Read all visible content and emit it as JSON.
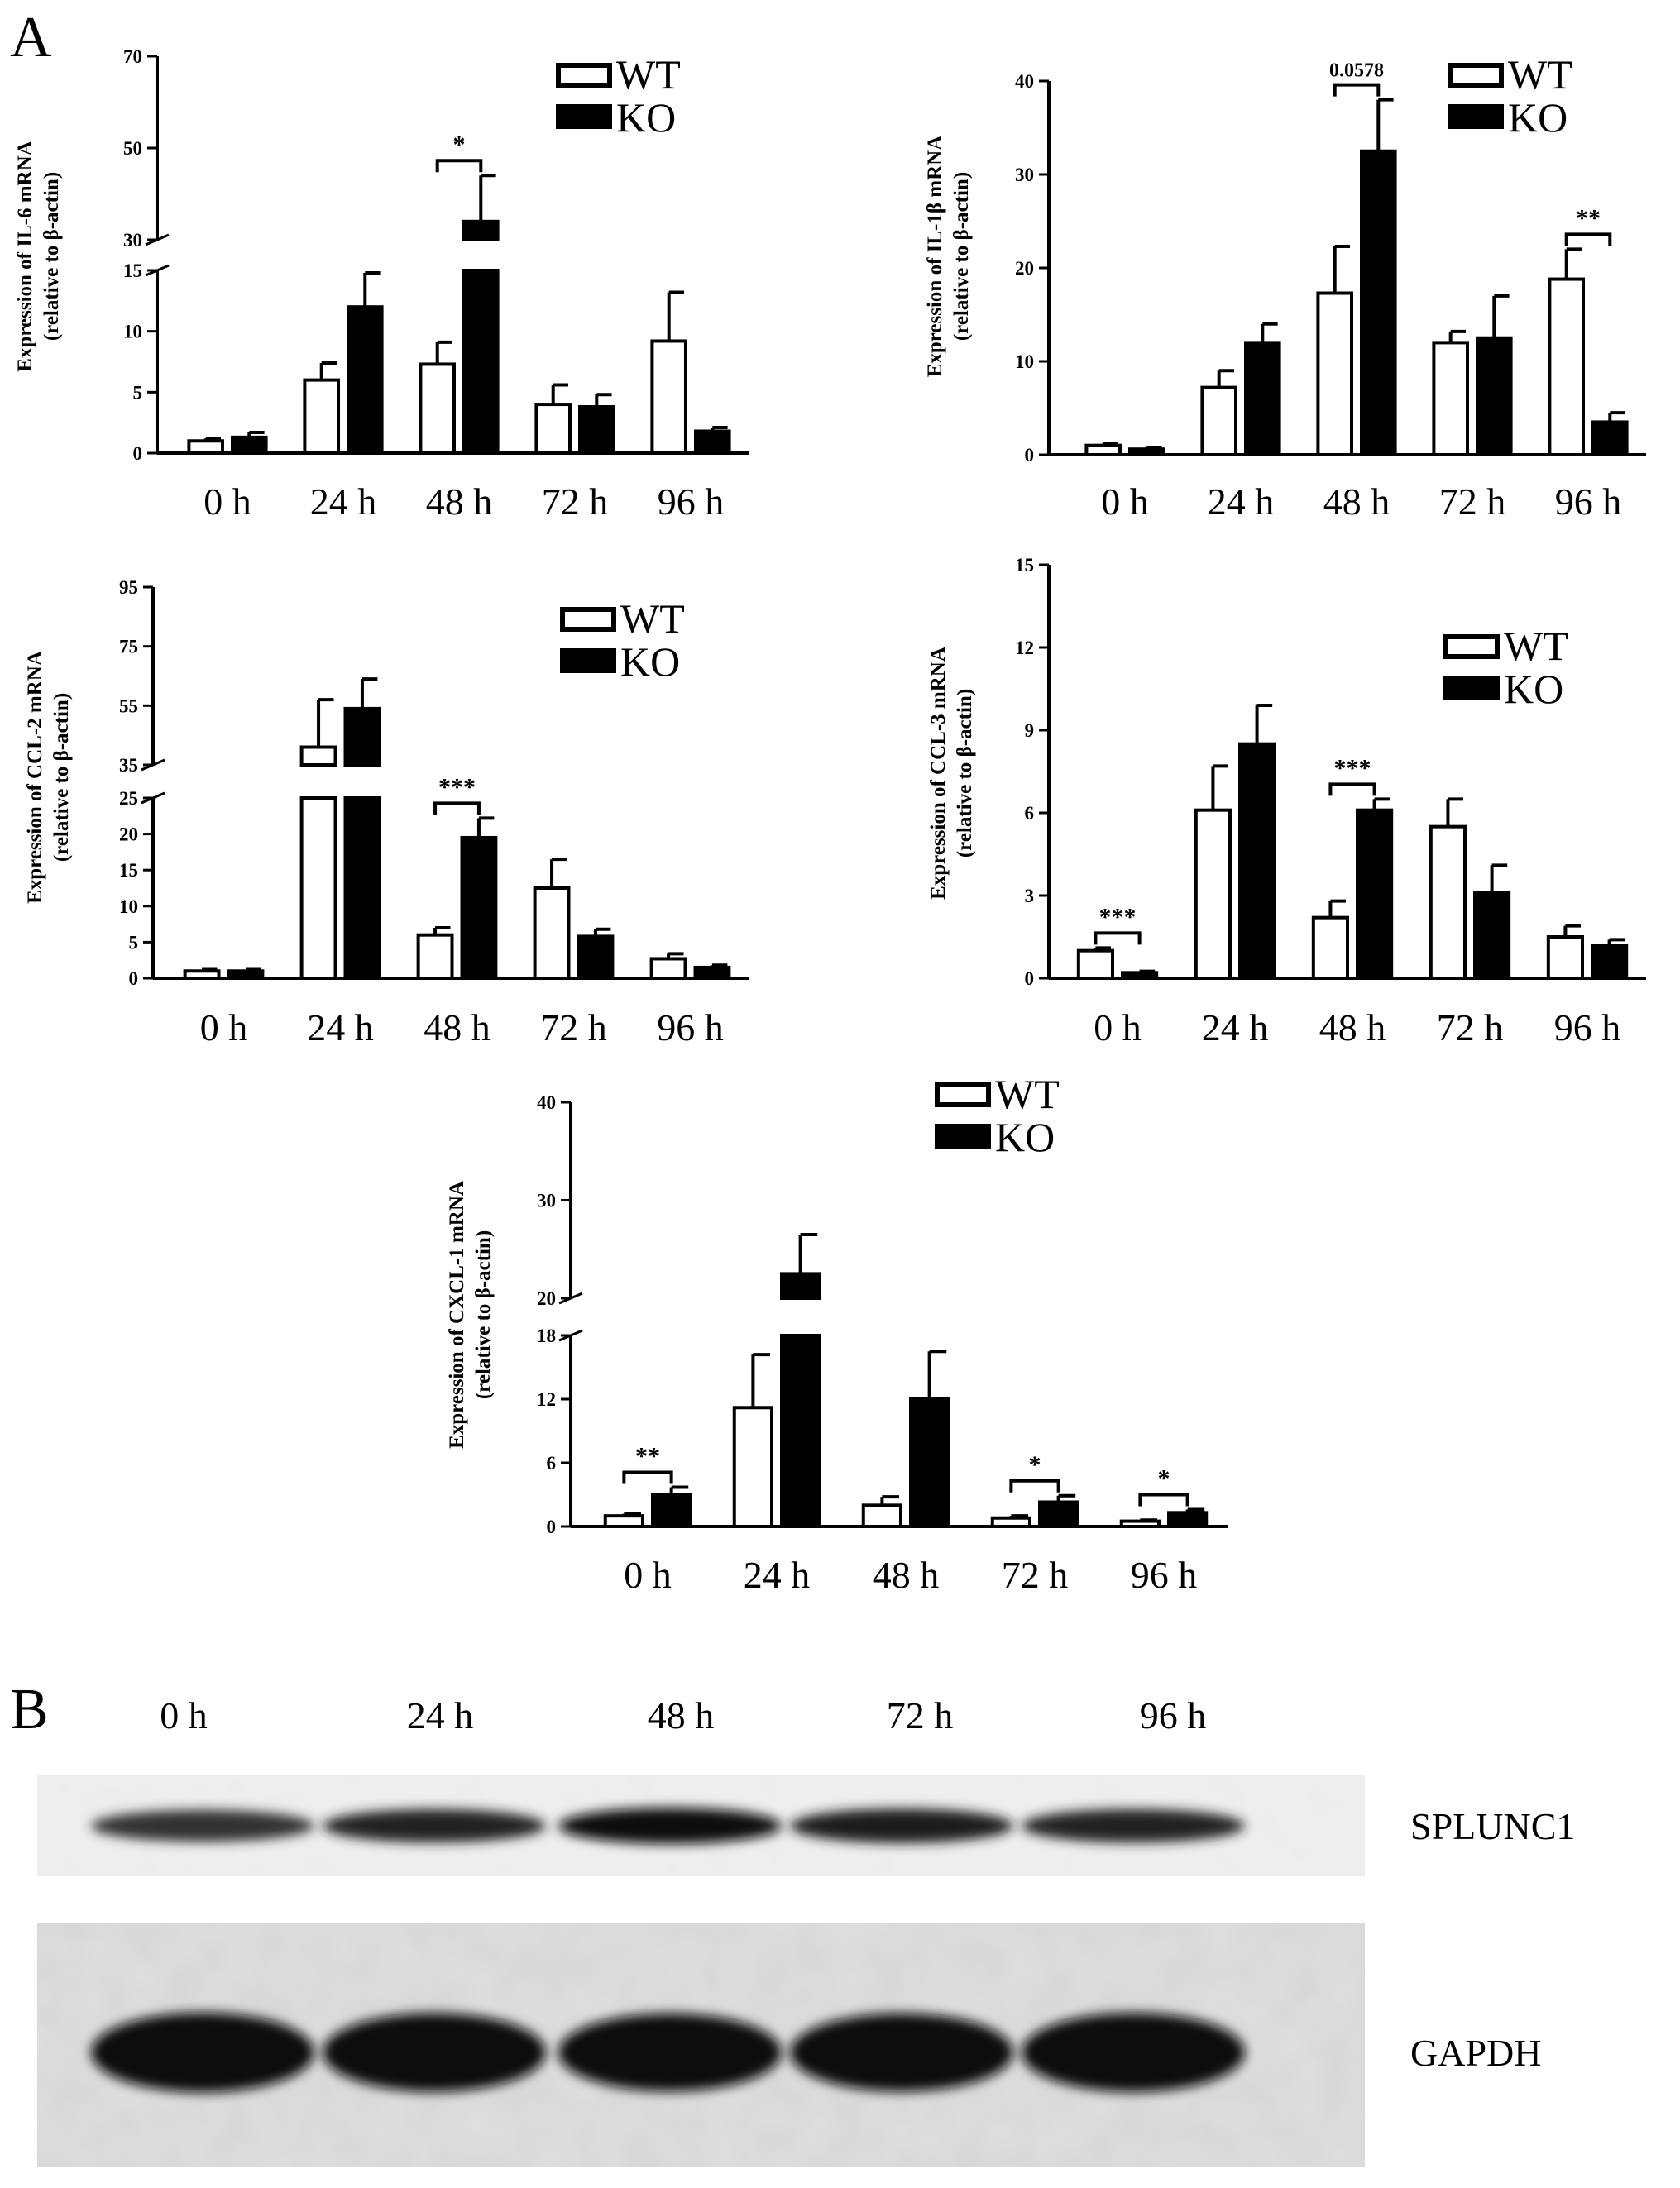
{
  "panel_labels": {
    "a": "A",
    "b": "B"
  },
  "legend": {
    "wt": "WT",
    "ko": "KO"
  },
  "colors": {
    "wt_fill": "#ffffff",
    "ko_fill": "#000000",
    "stroke": "#000000"
  },
  "chart_data": [
    {
      "id": "il6",
      "type": "bar",
      "ylabel_line1": "Expression of IL-6 mRNA",
      "ylabel_line2": "(relative to β-actin)",
      "categories": [
        "0 h",
        "24 h",
        "48 h",
        "72 h",
        "96 h"
      ],
      "series": [
        {
          "name": "WT",
          "values": [
            1.0,
            6.0,
            7.3,
            4.0,
            9.2
          ],
          "errors": [
            0.2,
            1.4,
            1.8,
            1.6,
            4.0
          ]
        },
        {
          "name": "KO",
          "values": [
            1.3,
            12.0,
            34.0,
            3.8,
            1.8
          ],
          "errors": [
            0.4,
            2.8,
            10.0,
            1.0,
            0.3
          ]
        }
      ],
      "y_axis": {
        "broken": true,
        "lower": [
          0,
          15
        ],
        "lower_ticks": [
          0,
          5,
          10,
          15
        ],
        "upper": [
          30,
          70
        ],
        "upper_ticks": [
          30,
          50,
          70
        ]
      },
      "significance": [
        {
          "category": "48 h",
          "label": "*"
        }
      ]
    },
    {
      "id": "il1b",
      "type": "bar",
      "ylabel_line1": "Expression of IL-1β mRNA",
      "ylabel_line2": "(relative to β-actin)",
      "categories": [
        "0 h",
        "24 h",
        "48 h",
        "72 h",
        "96 h"
      ],
      "series": [
        {
          "name": "WT",
          "values": [
            1.0,
            7.2,
            17.3,
            12.0,
            18.8
          ],
          "errors": [
            0.2,
            1.8,
            5.0,
            1.2,
            3.2
          ]
        },
        {
          "name": "KO",
          "values": [
            0.6,
            12.0,
            32.5,
            12.5,
            3.5
          ],
          "errors": [
            0.2,
            2.0,
            5.5,
            4.5,
            1.0
          ]
        }
      ],
      "y_axis": {
        "broken": false,
        "range": [
          0,
          40
        ],
        "ticks": [
          0,
          10,
          20,
          30,
          40
        ]
      },
      "significance": [
        {
          "category": "48 h",
          "label": "0.0578"
        },
        {
          "category": "96 h",
          "label": "**"
        }
      ]
    },
    {
      "id": "ccl2",
      "type": "bar",
      "ylabel_line1": "Expression of CCL-2 mRNA",
      "ylabel_line2": "(relative to β-actin)",
      "categories": [
        "0 h",
        "24 h",
        "48 h",
        "72 h",
        "96 h"
      ],
      "series": [
        {
          "name": "WT",
          "values": [
            1.0,
            41.0,
            6.0,
            12.5,
            2.7
          ],
          "errors": [
            0.2,
            16.0,
            1.0,
            4.0,
            0.7
          ]
        },
        {
          "name": "KO",
          "values": [
            1.0,
            54.0,
            19.5,
            5.8,
            1.5
          ],
          "errors": [
            0.2,
            10.0,
            2.7,
            1.0,
            0.3
          ]
        }
      ],
      "y_axis": {
        "broken": true,
        "lower": [
          0,
          25
        ],
        "lower_ticks": [
          0,
          5,
          10,
          15,
          20,
          25
        ],
        "upper": [
          35,
          95
        ],
        "upper_ticks": [
          35,
          55,
          75,
          95
        ]
      },
      "significance": [
        {
          "category": "48 h",
          "label": "***"
        }
      ]
    },
    {
      "id": "ccl3",
      "type": "bar",
      "ylabel_line1": "Expression of CCL-3 mRNA",
      "ylabel_line2": "(relative to β-actin)",
      "categories": [
        "0 h",
        "24 h",
        "48 h",
        "72 h",
        "96 h"
      ],
      "series": [
        {
          "name": "WT",
          "values": [
            1.0,
            6.1,
            2.2,
            5.5,
            1.5
          ],
          "errors": [
            0.1,
            1.6,
            0.6,
            1.0,
            0.4
          ]
        },
        {
          "name": "KO",
          "values": [
            0.2,
            8.5,
            6.1,
            3.1,
            1.2
          ],
          "errors": [
            0.05,
            1.4,
            0.4,
            1.0,
            0.2
          ]
        }
      ],
      "y_axis": {
        "broken": false,
        "range": [
          0,
          15
        ],
        "ticks": [
          0,
          3,
          6,
          9,
          12,
          15
        ]
      },
      "significance": [
        {
          "category": "0 h",
          "label": "***"
        },
        {
          "category": "48 h",
          "label": "***"
        }
      ]
    },
    {
      "id": "cxcl1",
      "type": "bar",
      "ylabel_line1": "Expression of CXCL-1 mRNA",
      "ylabel_line2": "(relative to β-actin)",
      "categories": [
        "0 h",
        "24 h",
        "48 h",
        "72 h",
        "96 h"
      ],
      "series": [
        {
          "name": "WT",
          "values": [
            1.0,
            11.2,
            2.0,
            0.8,
            0.5
          ],
          "errors": [
            0.2,
            5.0,
            0.8,
            0.2,
            0.1
          ]
        },
        {
          "name": "KO",
          "values": [
            3.0,
            22.5,
            12.0,
            2.3,
            1.3
          ],
          "errors": [
            0.7,
            4.0,
            4.5,
            0.6,
            0.3
          ]
        }
      ],
      "y_axis": {
        "broken": true,
        "lower": [
          0,
          18
        ],
        "lower_ticks": [
          0,
          6,
          12,
          18
        ],
        "upper": [
          20,
          40
        ],
        "upper_ticks": [
          20,
          30,
          40
        ]
      },
      "significance": [
        {
          "category": "0 h",
          "label": "**"
        },
        {
          "category": "72 h",
          "label": "*"
        },
        {
          "category": "96 h",
          "label": "*"
        }
      ]
    }
  ],
  "western_blot": {
    "lanes": [
      "0 h",
      "24 h",
      "48 h",
      "72 h",
      "96 h"
    ],
    "blots": [
      {
        "name": "SPLUNC1",
        "intensity": [
          0.55,
          0.7,
          0.95,
          0.8,
          0.72
        ]
      },
      {
        "name": "GAPDH",
        "intensity": [
          1.0,
          0.95,
          0.92,
          0.93,
          0.97
        ]
      }
    ]
  }
}
